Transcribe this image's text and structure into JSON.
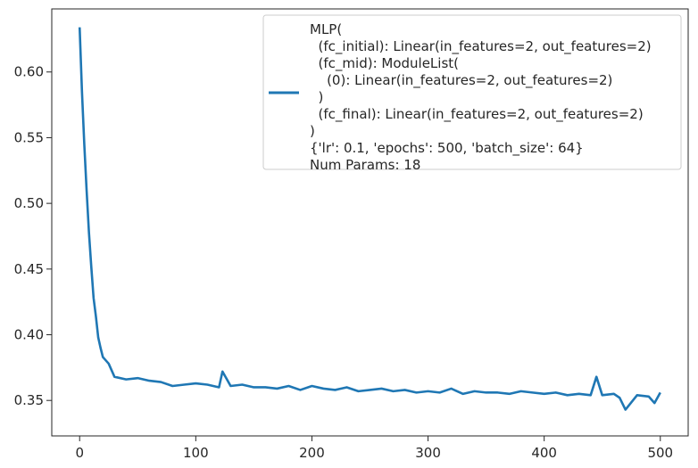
{
  "chart_data": {
    "type": "line",
    "title": "",
    "xlabel": "",
    "ylabel": "",
    "xlim": [
      -24,
      524
    ],
    "ylim": [
      0.323,
      0.648
    ],
    "xticks": [
      0,
      100,
      200,
      300,
      400,
      500
    ],
    "xtick_labels": [
      "0",
      "100",
      "200",
      "300",
      "400",
      "500"
    ],
    "yticks": [
      0.35,
      0.4,
      0.45,
      0.5,
      0.55,
      0.6
    ],
    "ytick_labels": [
      "0.35",
      "0.40",
      "0.45",
      "0.50",
      "0.55",
      "0.60"
    ],
    "grid": false,
    "legend_position": "top-right",
    "series": [
      {
        "name": "MLP(\n  (fc_initial): Linear(in_features=2, out_features=2)\n  (fc_mid): ModuleList(\n    (0): Linear(in_features=2, out_features=2)\n  )\n  (fc_final): Linear(in_features=2, out_features=2)\n)\n{'lr': 0.1, 'epochs': 500, 'batch_size': 64}\nNum Params: 18",
        "color": "#1f77b4",
        "x": [
          0,
          2,
          4,
          6,
          8,
          10,
          12,
          14,
          16,
          18,
          20,
          25,
          30,
          40,
          50,
          60,
          70,
          80,
          90,
          100,
          110,
          120,
          123,
          130,
          140,
          150,
          160,
          170,
          180,
          190,
          200,
          210,
          220,
          230,
          240,
          250,
          260,
          270,
          280,
          290,
          300,
          310,
          320,
          330,
          340,
          350,
          360,
          370,
          380,
          390,
          400,
          410,
          420,
          430,
          440,
          445,
          450,
          460,
          465,
          470,
          480,
          490,
          495,
          500
        ],
        "y": [
          0.634,
          0.585,
          0.545,
          0.51,
          0.478,
          0.452,
          0.428,
          0.414,
          0.398,
          0.39,
          0.383,
          0.378,
          0.368,
          0.366,
          0.367,
          0.365,
          0.364,
          0.361,
          0.362,
          0.363,
          0.362,
          0.36,
          0.372,
          0.361,
          0.362,
          0.36,
          0.36,
          0.359,
          0.361,
          0.358,
          0.361,
          0.359,
          0.358,
          0.36,
          0.357,
          0.358,
          0.359,
          0.357,
          0.358,
          0.356,
          0.357,
          0.356,
          0.359,
          0.355,
          0.357,
          0.356,
          0.356,
          0.355,
          0.357,
          0.356,
          0.355,
          0.356,
          0.354,
          0.355,
          0.354,
          0.368,
          0.354,
          0.355,
          0.352,
          0.343,
          0.354,
          0.353,
          0.348,
          0.356
        ]
      }
    ]
  }
}
